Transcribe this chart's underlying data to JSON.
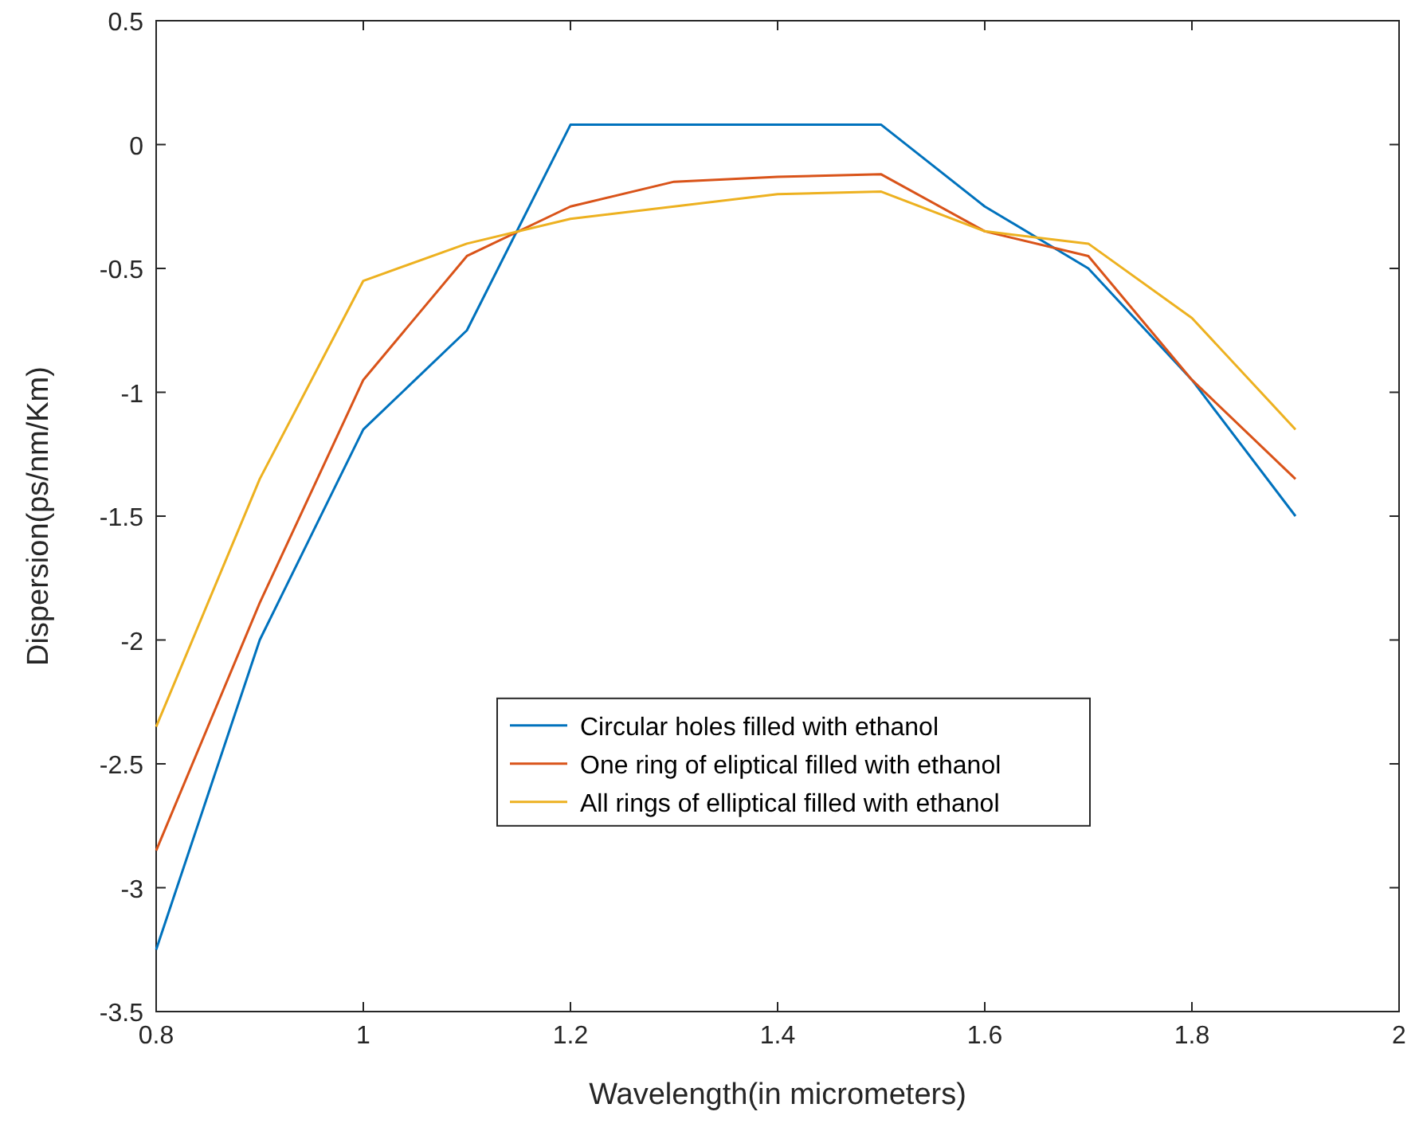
{
  "chart_data": {
    "type": "line",
    "xlabel": "Wavelength(in micrometers)",
    "ylabel": "Dispersion(ps/nm/Km)",
    "x": [
      0.8,
      0.9,
      1.0,
      1.1,
      1.2,
      1.3,
      1.4,
      1.5,
      1.6,
      1.7,
      1.8,
      1.9
    ],
    "series": [
      {
        "name": "Circular holes filled with ethanol",
        "color": "#0072bd",
        "values": [
          -3.25,
          -2,
          -1.15,
          -0.75,
          0.08,
          0.08,
          0.08,
          0.08,
          -0.25,
          -0.5,
          -0.95,
          -1.5
        ]
      },
      {
        "name": "One ring of eliptical filled with ethanol",
        "color": "#d95319",
        "values": [
          -2.85,
          -1.85,
          -0.95,
          -0.45,
          -0.25,
          -0.15,
          -0.13,
          -0.12,
          -0.35,
          -0.45,
          -0.95,
          -1.35
        ]
      },
      {
        "name": "All rings of elliptical filled with ethanol",
        "color": "#edb120",
        "values": [
          -2.35,
          -1.35,
          -0.55,
          -0.4,
          -0.3,
          -0.25,
          -0.2,
          -0.19,
          -0.35,
          -0.4,
          -0.7,
          -1.15
        ]
      }
    ],
    "xlim": [
      0.8,
      2
    ],
    "xticks": [
      {
        "value": 0.8,
        "label": "0.8"
      },
      {
        "value": 1,
        "label": "1"
      },
      {
        "value": 1.2,
        "label": "1.2"
      },
      {
        "value": 1.4,
        "label": "1.4"
      },
      {
        "value": 1.6,
        "label": "1.6"
      },
      {
        "value": 1.8,
        "label": "1.8"
      },
      {
        "value": 2,
        "label": "2"
      }
    ],
    "ylim": [
      -3.5,
      0.5
    ],
    "yticks": [
      -3.5,
      -3,
      -2.5,
      -2,
      -1.5,
      -1,
      -0.5,
      0,
      0.5
    ],
    "legend": "bottom",
    "grid": false,
    "marker": "none",
    "line_style": "solid"
  }
}
